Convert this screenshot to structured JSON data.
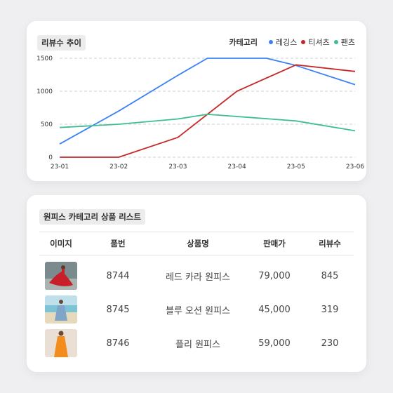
{
  "chart_card": {
    "title": "리뷰수 추이",
    "legend_title": "카테고리"
  },
  "chart_data": {
    "type": "line",
    "x": [
      "23-01",
      "23-02",
      "23-03",
      "23-04",
      "23-05",
      "23-06"
    ],
    "series": [
      {
        "name": "레깅스",
        "color": "#3b82f6",
        "points": [
          [
            "23-01",
            200
          ],
          [
            "23-02",
            700
          ],
          [
            "23-03",
            1240
          ],
          [
            "23-03.5",
            1500
          ],
          [
            "23-04.5",
            1500
          ],
          [
            "23-05",
            1390
          ],
          [
            "23-06",
            1100
          ]
        ]
      },
      {
        "name": "티셔츠",
        "color": "#c62828",
        "points": [
          [
            "23-01",
            0
          ],
          [
            "23-02",
            0
          ],
          [
            "23-03",
            300
          ],
          [
            "23-04",
            1000
          ],
          [
            "23-05",
            1400
          ],
          [
            "23-06",
            1300
          ]
        ]
      },
      {
        "name": "팬츠",
        "color": "#3fbf8f",
        "points": [
          [
            "23-01",
            450
          ],
          [
            "23-02",
            500
          ],
          [
            "23-03",
            580
          ],
          [
            "23-03.5",
            650
          ],
          [
            "23-05",
            550
          ],
          [
            "23-06",
            400
          ]
        ]
      }
    ],
    "y_ticks": [
      0,
      500,
      1000,
      1500
    ],
    "ylim": [
      0,
      1500
    ],
    "grid": true,
    "legend_position": "top-right"
  },
  "table_card": {
    "title": "원피스 카테고리 상품 리스트",
    "headers": [
      "이미지",
      "품번",
      "상품명",
      "판매가",
      "리뷰수"
    ],
    "rows": [
      {
        "image": "red-dress-photo",
        "code": "8744",
        "name": "레드 카라 원피스",
        "price": "79,000",
        "reviews": "845"
      },
      {
        "image": "blue-dress-beach-photo",
        "code": "8745",
        "name": "블루 오션 원피스",
        "price": "45,000",
        "reviews": "319"
      },
      {
        "image": "orange-dress-photo",
        "code": "8746",
        "name": "플리 원피스",
        "price": "59,000",
        "reviews": "230"
      }
    ]
  }
}
